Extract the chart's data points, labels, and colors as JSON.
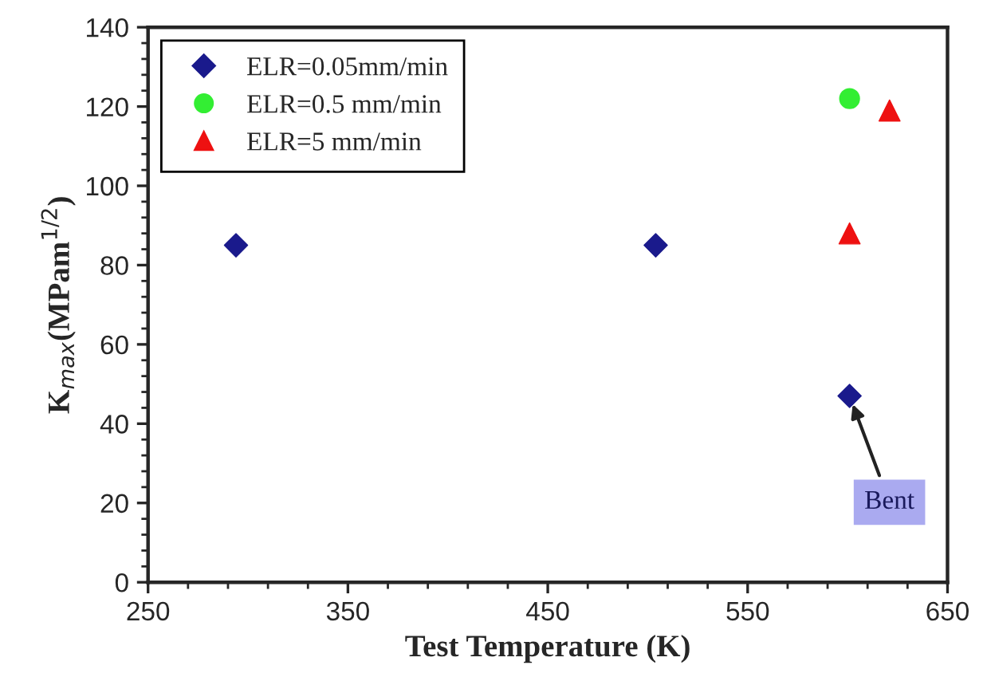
{
  "chart_data": {
    "type": "scatter",
    "xlabel": "Test Temperature (K)",
    "ylabel": "K$_{max}$(MPam$^{1/2}$)",
    "xlim": [
      250,
      650
    ],
    "xticks": [
      250,
      350,
      450,
      550,
      650
    ],
    "ylim": [
      0,
      140
    ],
    "yticks": [
      0,
      20,
      40,
      60,
      80,
      100,
      120,
      140
    ],
    "grid": false,
    "legend": "top left",
    "series": [
      {
        "name": "ELR=0.05mm/min",
        "color": "#1a1a8c",
        "marker": "diamond",
        "x": [
          294,
          504,
          601
        ],
        "values": [
          85,
          85,
          47
        ]
      },
      {
        "name": "ELR=0.5 mm/min",
        "color": "#33ee33",
        "marker": "circle",
        "x": [
          601
        ],
        "values": [
          122
        ]
      },
      {
        "name": "ELR=5 mm/min",
        "color": "#ee1111",
        "marker": "triangle",
        "x": [
          601,
          621
        ],
        "values": [
          88,
          119
        ]
      }
    ],
    "annotations": [
      {
        "text": "Bent",
        "x": 601,
        "y": 47
      }
    ]
  }
}
